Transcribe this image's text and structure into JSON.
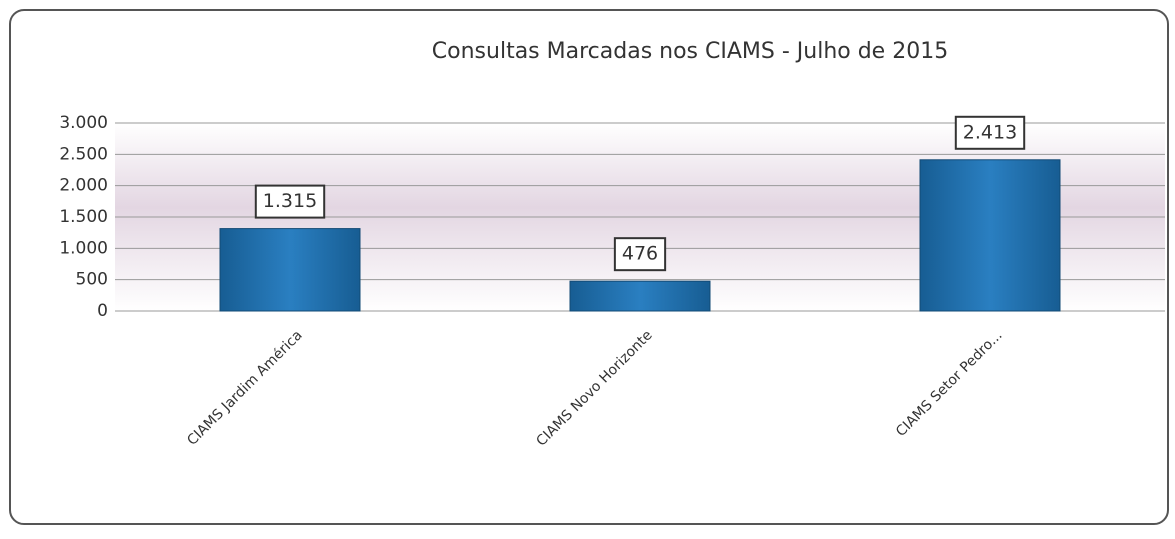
{
  "chart_data": {
    "type": "bar",
    "title": "Consultas Marcadas nos CIAMS - Julho de 2015",
    "categories": [
      "CIAMS Jardim América",
      "CIAMS Novo Horizonte",
      "CIAMS Setor Pedro..."
    ],
    "values": [
      1315,
      476,
      2413
    ],
    "value_labels": [
      "1.315",
      "476",
      "2.413"
    ],
    "color": "#1f6fae",
    "ylim": [
      0,
      3000
    ],
    "yticks": [
      0,
      500,
      {
        "value": 1000,
        "label": "1.000"
      },
      {
        "value": 1500,
        "label": "1.500"
      },
      {
        "value": 2000,
        "label": "2.000"
      },
      {
        "value": 2500,
        "label": "2.500"
      },
      {
        "value": 3000,
        "label": "3.000"
      }
    ],
    "grid": true
  }
}
